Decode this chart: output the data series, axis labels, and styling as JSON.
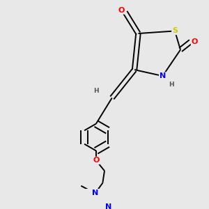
{
  "bg_color": "#e8e8e8",
  "bond_color": "#000000",
  "bond_lw": 1.4,
  "dbo": 0.012,
  "atom_colors": {
    "S": "#cccc00",
    "N": "#0000ff",
    "O": "#ff0000",
    "H": "#555555"
  },
  "fs": 8.0,
  "fsh": 6.5,
  "xlim": [
    0.0,
    1.0
  ],
  "ylim": [
    0.0,
    1.0
  ]
}
